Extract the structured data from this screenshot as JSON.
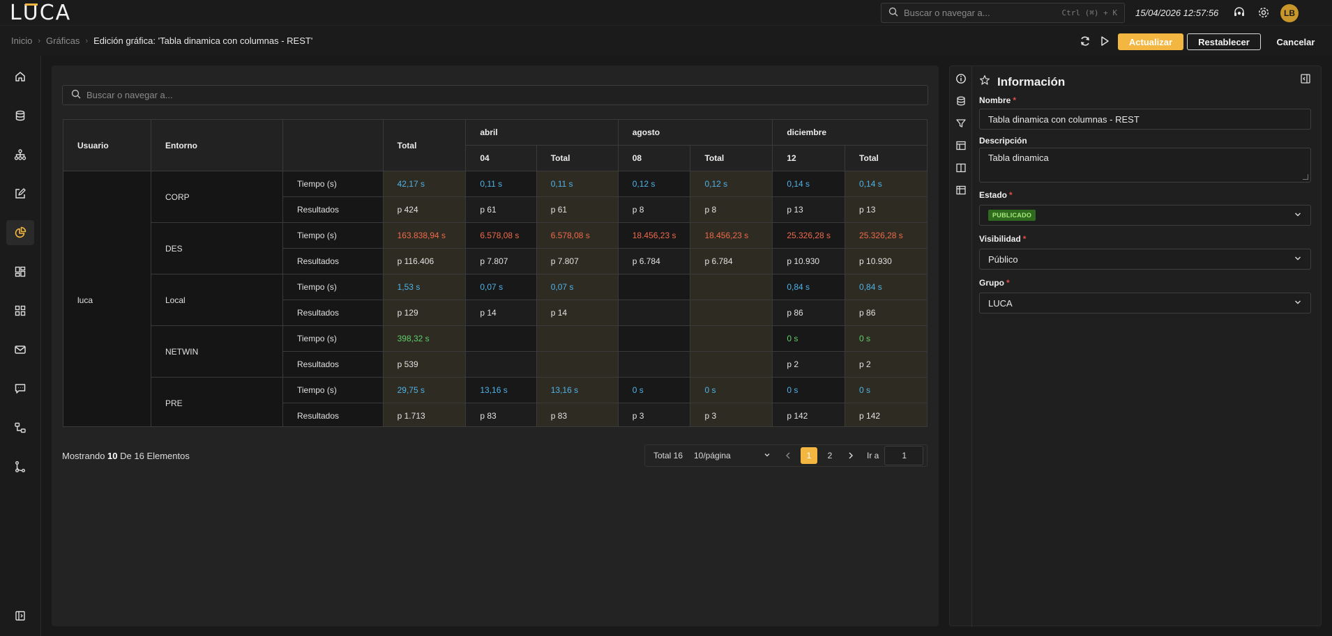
{
  "app": {
    "logo": "LUCA",
    "user_initials": "LB",
    "datetime": "15/04/2026 12:57:56"
  },
  "global_search": {
    "placeholder": "Buscar o navegar a...",
    "shortcut": "Ctrl (⌘) + K"
  },
  "breadcrumb": {
    "items": [
      "Inicio",
      "Gráficas"
    ],
    "current": "Edición gráfica: 'Tabla dinamica con columnas - REST'"
  },
  "toolbar": {
    "update_label": "Actualizar",
    "reset_label": "Restablecer",
    "cancel_label": "Cancelar"
  },
  "colors": {
    "accent": "#f3b640",
    "background": "#191919",
    "panel": "#232323",
    "blue_value": "#4fb3e8",
    "red_value": "#f06a4a",
    "green_value": "#5fcf6a",
    "published_badge": "#2e6b1e"
  },
  "sidebar": {
    "items": [
      {
        "icon": "home-icon",
        "active": false
      },
      {
        "icon": "database-icon",
        "active": false
      },
      {
        "icon": "hierarchy-icon",
        "active": false
      },
      {
        "icon": "edit-icon",
        "active": false
      },
      {
        "icon": "chart-pie-icon",
        "active": true
      },
      {
        "icon": "dashboard-icon",
        "active": false
      },
      {
        "icon": "grid-icon",
        "active": false
      },
      {
        "icon": "mail-icon",
        "active": false
      },
      {
        "icon": "message-icon",
        "active": false
      },
      {
        "icon": "flow-icon",
        "active": false
      },
      {
        "icon": "git-branch-icon",
        "active": false
      }
    ],
    "bottom_icon": "panel-toggle-icon"
  },
  "table_search": {
    "placeholder": "Buscar o navegar a..."
  },
  "pivot": {
    "headers": {
      "usuario": "Usuario",
      "entorno": "Entorno",
      "total": "Total",
      "months": [
        {
          "name": "abril",
          "day": "04",
          "total": "Total"
        },
        {
          "name": "agosto",
          "day": "08",
          "total": "Total"
        },
        {
          "name": "diciembre",
          "day": "12",
          "total": "Total"
        }
      ]
    },
    "user": "luca",
    "groups": [
      {
        "entorno": "CORP",
        "rows": [
          {
            "metric": "Tiempo (s)",
            "tone": "blue",
            "values": [
              "42,17 s",
              "0,11 s",
              "0,11 s",
              "0,12 s",
              "0,12 s",
              "0,14 s",
              "0,14 s"
            ]
          },
          {
            "metric": "Resultados",
            "tone": "white",
            "values": [
              "p 424",
              "p 61",
              "p 61",
              "p 8",
              "p 8",
              "p 13",
              "p 13"
            ]
          }
        ]
      },
      {
        "entorno": "DES",
        "rows": [
          {
            "metric": "Tiempo (s)",
            "tone": "red",
            "values": [
              "163.838,94 s",
              "6.578,08 s",
              "6.578,08 s",
              "18.456,23 s",
              "18.456,23 s",
              "25.326,28 s",
              "25.326,28 s"
            ]
          },
          {
            "metric": "Resultados",
            "tone": "white",
            "values": [
              "p 116.406",
              "p 7.807",
              "p 7.807",
              "p 6.784",
              "p 6.784",
              "p 10.930",
              "p 10.930"
            ]
          }
        ]
      },
      {
        "entorno": "Local",
        "rows": [
          {
            "metric": "Tiempo (s)",
            "tone": "blue",
            "values": [
              "1,53 s",
              "0,07 s",
              "0,07 s",
              "",
              "",
              "0,84 s",
              "0,84 s"
            ]
          },
          {
            "metric": "Resultados",
            "tone": "white",
            "values": [
              "p 129",
              "p 14",
              "p 14",
              "",
              "",
              "p 86",
              "p 86"
            ]
          }
        ]
      },
      {
        "entorno": "NETWIN",
        "rows": [
          {
            "metric": "Tiempo (s)",
            "tone": "green",
            "values": [
              "398,32 s",
              "",
              "",
              "",
              "",
              "0 s",
              "0 s"
            ]
          },
          {
            "metric": "Resultados",
            "tone": "white",
            "values": [
              "p 539",
              "",
              "",
              "",
              "",
              "p 2",
              "p 2"
            ]
          }
        ]
      },
      {
        "entorno": "PRE",
        "rows": [
          {
            "metric": "Tiempo (s)",
            "tone": "blue",
            "values": [
              "29,75 s",
              "13,16 s",
              "13,16 s",
              "0 s",
              "0 s",
              "0 s",
              "0 s"
            ]
          },
          {
            "metric": "Resultados",
            "tone": "white",
            "values": [
              "p 1.713",
              "p 83",
              "p 83",
              "p 3",
              "p 3",
              "p 142",
              "p 142"
            ]
          }
        ]
      }
    ]
  },
  "footer": {
    "prefix": "Mostrando",
    "shown": "10",
    "middle": "De 16 Elementos"
  },
  "pagination": {
    "total": "Total 16",
    "page_size": "10/página",
    "pages": [
      "1",
      "2"
    ],
    "current": "1",
    "goto_label": "Ir a",
    "goto_value": "1"
  },
  "info_panel": {
    "title": "Información",
    "tabs": [
      "info-icon",
      "database-icon",
      "filter-icon",
      "table-icon",
      "columns-icon",
      "layout-icon"
    ],
    "nombre": {
      "label": "Nombre",
      "value": "Tabla dinamica con columnas - REST"
    },
    "descripcion": {
      "label": "Descripción",
      "value": "Tabla dinamica"
    },
    "estado": {
      "label": "Estado",
      "value": "PUBLICADO"
    },
    "visibilidad": {
      "label": "Visibilidad",
      "value": "Público"
    },
    "grupo": {
      "label": "Grupo",
      "value": "LUCA"
    }
  }
}
